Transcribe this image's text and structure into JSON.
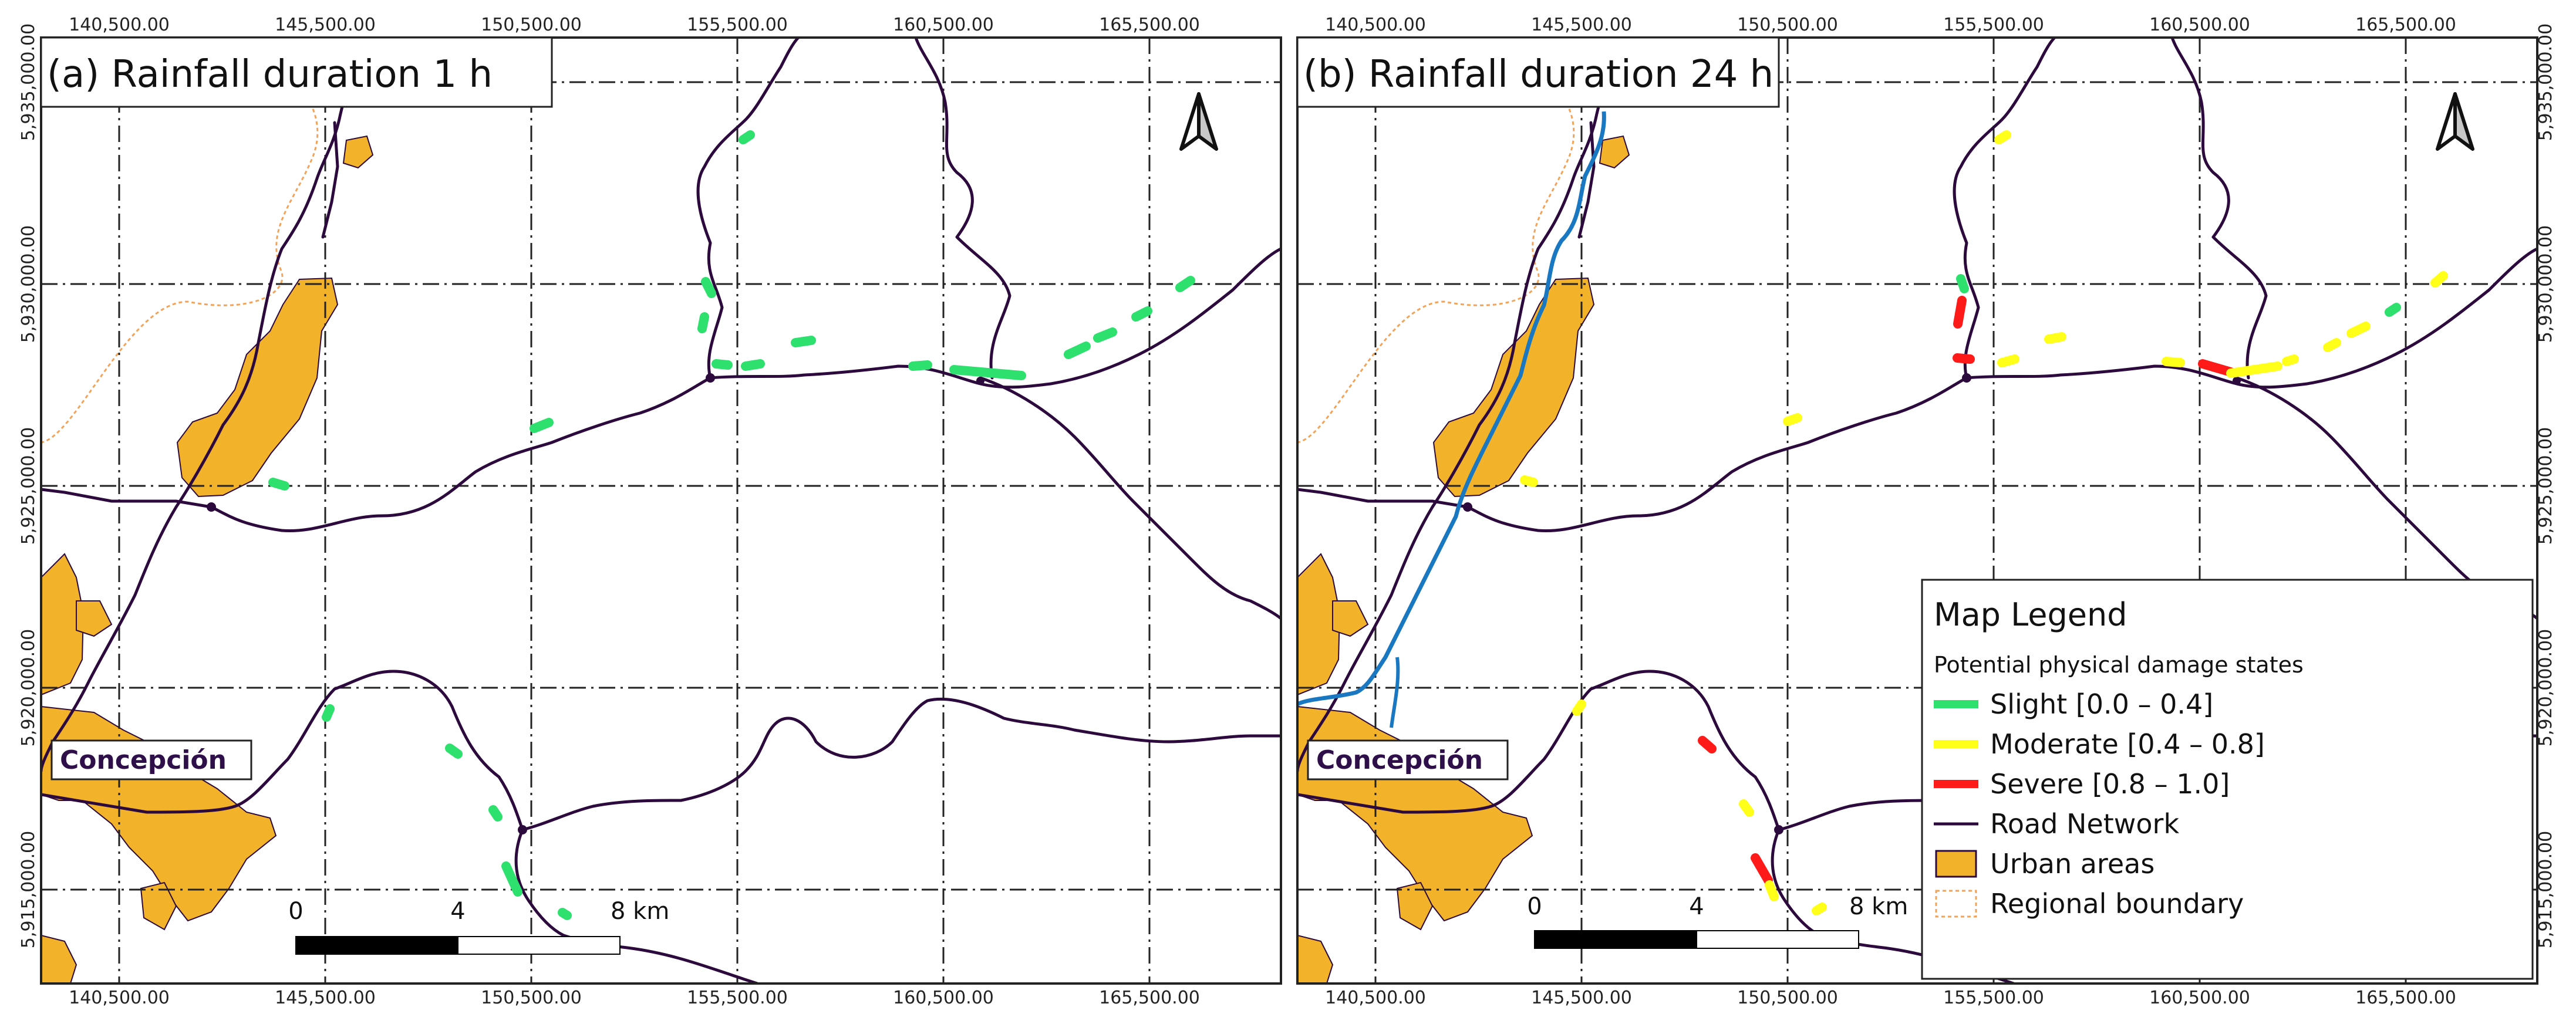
{
  "panels": [
    {
      "title": "(a) Rainfall duration 1 h",
      "city_label": "Concepción",
      "x_ticks": [
        "140,500.00",
        "145,500.00",
        "150,500.00",
        "155,500.00",
        "160,500.00",
        "165,500.00"
      ],
      "y_ticks": [
        "5,935,000.00",
        "5,930,000.00",
        "5,925,000.00",
        "5,920,000.00",
        "5,915,000.00"
      ],
      "scale_labels": [
        "0",
        "4",
        "8 km"
      ],
      "damage_segments": "slight"
    },
    {
      "title": "(b) Rainfall duration 24 h",
      "city_label": "Concepción",
      "x_ticks": [
        "140,500.00",
        "145,500.00",
        "150,500.00",
        "155,500.00",
        "160,500.00",
        "165,500.00"
      ],
      "y_ticks": [
        "5,935,000.00",
        "5,930,000.00",
        "5,925,000.00",
        "5,920,000.00",
        "5,915,000.00"
      ],
      "scale_labels": [
        "0",
        "4",
        "8 km"
      ],
      "damage_segments": "mixed"
    }
  ],
  "legend": {
    "title": "Map Legend",
    "subtitle": "Potential physical damage states",
    "items": [
      {
        "label": "Slight [0.0 – 0.4]",
        "color": "#2ee06e",
        "kind": "line"
      },
      {
        "label": "Moderate [0.4 – 0.8]",
        "color": "#ffff1a",
        "kind": "line"
      },
      {
        "label": "Severe [0.8 – 1.0]",
        "color": "#ff1a1a",
        "kind": "line"
      },
      {
        "label": "Road Network",
        "color": "#2d0a3d",
        "kind": "thin"
      },
      {
        "label": "Urban areas",
        "color": "#f2b32a",
        "kind": "box"
      },
      {
        "label": "Regional boundary",
        "color": "#f2a35a",
        "kind": "dash"
      }
    ]
  },
  "colors": {
    "road": "#2d0a3d",
    "urban": "#f2b32a",
    "urban_edge": "#2d0a3d",
    "boundary": "#f2a35a",
    "river": "#1a78c2",
    "slight": "#2ee06e",
    "moderate": "#ffff1a",
    "severe": "#ff1a1a"
  }
}
